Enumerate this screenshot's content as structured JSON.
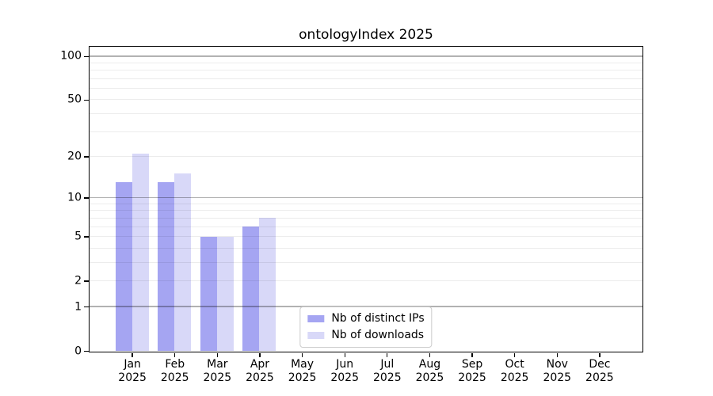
{
  "chart_data": {
    "type": "bar",
    "title": "ontologyIndex 2025",
    "categories": [
      {
        "label": "Jan",
        "sublabel": "2025"
      },
      {
        "label": "Feb",
        "sublabel": "2025"
      },
      {
        "label": "Mar",
        "sublabel": "2025"
      },
      {
        "label": "Apr",
        "sublabel": "2025"
      },
      {
        "label": "May",
        "sublabel": "2025"
      },
      {
        "label": "Jun",
        "sublabel": "2025"
      },
      {
        "label": "Jul",
        "sublabel": "2025"
      },
      {
        "label": "Aug",
        "sublabel": "2025"
      },
      {
        "label": "Sep",
        "sublabel": "2025"
      },
      {
        "label": "Oct",
        "sublabel": "2025"
      },
      {
        "label": "Nov",
        "sublabel": "2025"
      },
      {
        "label": "Dec",
        "sublabel": "2025"
      }
    ],
    "series": [
      {
        "name": "Nb of distinct IPs",
        "color": "#a5a5f2",
        "values": [
          13,
          13,
          5,
          6,
          null,
          null,
          null,
          null,
          null,
          null,
          null,
          null
        ]
      },
      {
        "name": "Nb of downloads",
        "color": "#d8d8f8",
        "values": [
          21,
          15,
          5,
          7,
          null,
          null,
          null,
          null,
          null,
          null,
          null,
          null
        ]
      }
    ],
    "xlabel": "",
    "ylabel": "",
    "yscale": "log10(1+v)",
    "ylim": [
      0,
      115
    ],
    "yticks": [
      0,
      1,
      2,
      5,
      10,
      20,
      50,
      100
    ],
    "grid": {
      "major_values": [
        1,
        10,
        100
      ],
      "minor_values": [
        2,
        3,
        4,
        5,
        6,
        7,
        8,
        9,
        20,
        30,
        40,
        50,
        60,
        70,
        80,
        90
      ],
      "major_color": "rgba(0,0,0,0.30)",
      "minor_color": "rgba(0,0,0,0.075)"
    },
    "legend_position": "lower center"
  }
}
